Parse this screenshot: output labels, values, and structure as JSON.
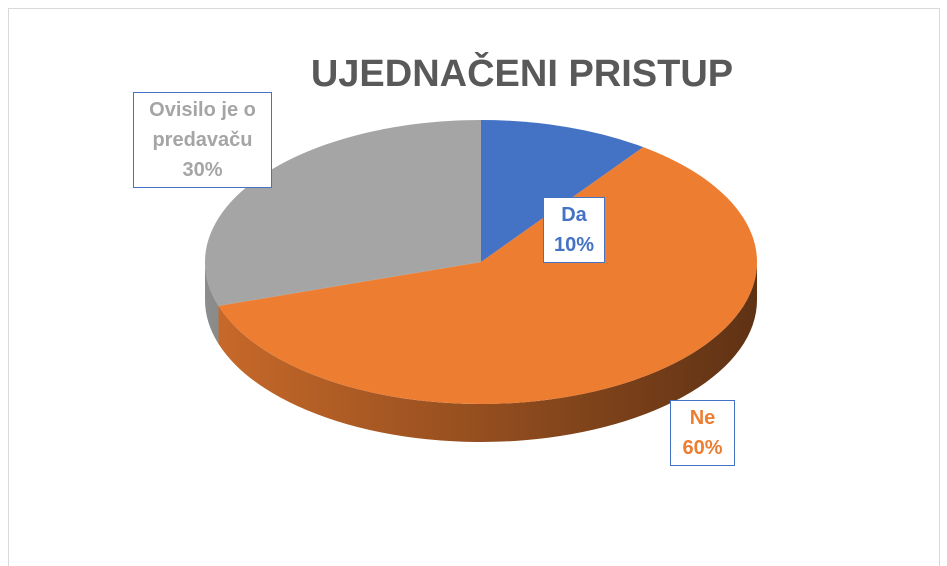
{
  "chart_data": {
    "type": "pie3d",
    "title": "UJEDNAČENI PRISTUP",
    "categories": [
      "Da",
      "Ne",
      "Ovisilo je o predavaču"
    ],
    "values": [
      10,
      60,
      30
    ],
    "value_labels": [
      "10%",
      "60%",
      "30%"
    ],
    "colors": [
      "#4472c4",
      "#ed7d31",
      "#a5a5a5"
    ]
  }
}
